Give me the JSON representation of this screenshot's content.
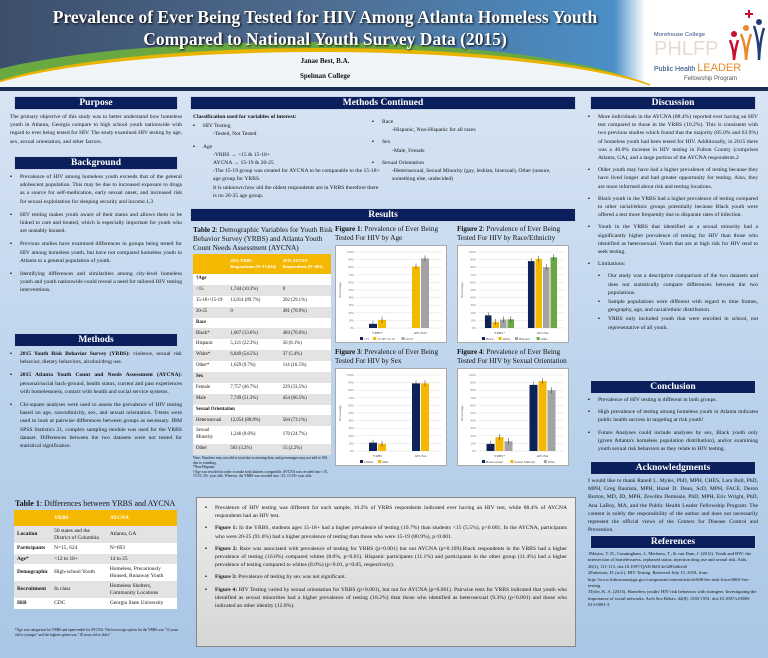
{
  "header": {
    "title_line1": "Prevalence of Ever Being Tested for HIV Among Atlanta Homeless Youth",
    "title_line2": "Compared to National Youth Survey Data (2015)",
    "author": "Janae Best, B.A.",
    "affiliation": "Spelman College",
    "logo": {
      "line1": "Morehouse College",
      "line2": "PHLFP",
      "line3a": "Public Health",
      "line3b": "LEADER",
      "line4": "Fellowship Program"
    }
  },
  "purpose": {
    "heading": "Purpose",
    "text": "The primary objective of this study was to better understand how homeless youth in Atlanta, Georgia compare to high school youth nationwide with regard to ever being tested for HIV. The study examined HIV testing by age, sex, sexual orientation, and other factors."
  },
  "background": {
    "heading": "Background",
    "items": [
      "Prevalence of HIV among homeless youth exceeds that of the general adolescent population. This may be due to increased exposure to drugs as a source for self-medication, early sexual onset, and increased risk for sexual exploitation for sleeping security and income.1,3",
      "HIV testing makes youth aware of their status and allows them to be linked to care and treated, which is especially important for youth who are unstably housed.",
      "Previous studies have examined differences in groups being tested for HIV among homeless youth, but have not compared homeless youth in Atlanta to a general population of youth.",
      "Identifying differences and similarities among city-level homeless youth and youth nationwide could reveal a need for tailored HIV testing interventions."
    ]
  },
  "methods": {
    "heading": "Methods",
    "items": [
      {
        "bold": "2015 Youth Risk Behavior Survey (YRBS):",
        "text": " violence, sexual risk behavior, dietary behaviors, alcohol/drug use."
      },
      {
        "bold": "2015 Atlanta Youth Count and Needs Assessment (AYCNA)",
        "text": ": personal/social back-ground, health status, current and past experiences with homelessness, contact with health and social service systems."
      },
      {
        "bold": "",
        "text": "Chi-square analyses were used to assess the prevalence of HIV testing based on age, race/ethnicity, sex, and sexual orientation. T-tests were used to look at pairwise differences between groups as necessary. IBM SPSS Statistics 21, complex sampling module was used for the YRBS dataset. Differences between the two datasets were not tested for statistical significance."
      }
    ]
  },
  "table1": {
    "caption_bold": "Table 1",
    "caption": ": Differences between YRBS and AYCNA",
    "headers": [
      "",
      "YRBS",
      "AYCNA"
    ],
    "rows": [
      [
        "Location",
        "50 states and the District of Columbia",
        "Atlanta, GA"
      ],
      [
        "Participants",
        "N=15, 624",
        "N=693"
      ],
      [
        "Age*",
        "<12 to 18+",
        "14 to 25"
      ],
      [
        "Demographic",
        "High-school Youth",
        "Homeless, Precariously Housed, Runaway Youth"
      ],
      [
        "Recruitment",
        "In class",
        "Homeless Shelters, Community Locations"
      ],
      [
        "IRB",
        "CDC",
        "Georgia State University"
      ]
    ],
    "note": "*Age was categorical for YRBS and open-ended for AYCNA. The lowest age option for the YRBS was \"12 years old or younger\" and the highest option was \"18 years old or older\""
  },
  "methods_continued": {
    "heading": "Methods Continued",
    "classification": "Classification used for variables of interest:",
    "left": [
      {
        "label": "HIV Testing",
        "lines": [
          "-Tested, Not Tested"
        ]
      },
      {
        "label": "Age",
        "lines": [
          "-YRBS → <15 & 15-18+",
          "AYCNA → 15-19 & 20-25",
          "-The 15-19 group was created for AYCNA to be comparable to the 15-18+ age group for YRBS.",
          "It is unknown how old the oldest respondents are in YRBS therefore there is no 20-25 age group."
        ]
      }
    ],
    "right": [
      {
        "label": "Race",
        "lines": [
          "-Hispanic, Non-Hispanic for all races"
        ]
      },
      {
        "label": "Sex",
        "lines": [
          "-Male, Female"
        ]
      },
      {
        "label": "Sexual Orientation",
        "lines": [
          "-Heterosexual, Sexual Minority (gay, lesbian, bisexual), Other (unsure, something else, undecided)"
        ]
      }
    ]
  },
  "results": {
    "heading": "Results",
    "items": [
      {
        "bold": "",
        "text": "Prevalence of HIV testing was different for each sample, 10.2% of YRBS respondents indicated ever having an HIV test, while 88.4% of AYCNA respondents had an HIV test."
      },
      {
        "bold": "Figure 1:",
        "text": " In the YRBS, students ages 15-18+ had a higher prevalence of testing (10.7%) than students <15 (5.5%), p<0.001. In the AYCNA, participants who were 20-25 (91.6%) had a higher prevalence of testing than those who were 15-19 (80.9%), p<0.001."
      },
      {
        "bold": "Figure 2:",
        "text": " Race was associated with prevalence of testing for YRBS (p<0.001) but not AYCNA (p=0.109).Black respondents in the YRBS had a higher prevalence of testing (16.6%) compared whites (8.0%, p<0.01). Hispanic participants (11.1%) and participants in the other group (11.4%) had a higher prevalence of testing compared to whites (8.0%) (p<0.01, p<0.05, respectively)."
      },
      {
        "bold": "Figure 3:",
        "text": " Prevalence of testing by sex was not significant."
      },
      {
        "bold": "Figure 4:",
        "text": " HIV Testing varied by sexual orientation for YRBS (p<0.001), but not for AYCNA (p=0.061). Pairwise tests for YRBS indicated that youth who identified as sexual minorities had a higher prevalence of testing (18.2%) than those who identified as heterosexual (9.3%) (p<0.001) and those who indicated an other identity (12.8%)."
      }
    ]
  },
  "table2": {
    "caption_bold": "Table 2",
    "caption": ": Demographic Variables for Youth Risk Behavior Survey (YRBS) and Atlanta Youth Count Needs Assessment (AYCNA)",
    "headers": [
      "",
      "2015 YRBS Respondents (N=15,624)",
      "2015 AYCNA Respondents (N=693)"
    ],
    "rows": [
      {
        "section": "†Age"
      },
      [
        "<15",
        "1,744 (10.3%)",
        "0"
      ],
      [
        "15-18+/15-19",
        "13,814 (89.7%)",
        "202 (29.1%)"
      ],
      [
        "20-25",
        "0",
        "491 (70.9%)"
      ],
      {
        "section": "Race"
      },
      [
        "Black*",
        "1,667 (13.6%)",
        "484 (70.0%)"
      ],
      [
        "Hispanic",
        "5,121 (22.3%)",
        "56 (8.1%)"
      ],
      [
        "White*",
        "6,849 (54.5%)",
        "37 (5.4%)"
      ],
      [
        "Other*",
        "1,629 (9.7%)",
        "114 (16.5%)"
      ],
      {
        "section": "Sex"
      },
      [
        "Female",
        "7,757 (46.7%)",
        "229 (33.5%)"
      ],
      [
        "Male",
        "7,749 (51.3%)",
        "454 (66.5%)"
      ],
      {
        "section": "Sexual Orientation"
      },
      [
        "Heterosexual",
        "12,054 (88.8%)",
        "504 (73.1%)"
      ],
      [
        "Sexual Minority",
        "1,246 (8.0%)",
        "170 (24.7%)"
      ],
      [
        "Other",
        "503 (3.2%)",
        "15 (2.2%)"
      ]
    ],
    "notes": [
      "Note: Numbers may not add to total due to missing data, and percentages may not add to 100, due to rounding.",
      "*Non-Hispanic",
      "†Age was recoded in order to make both datasets comparable. AYCNA was recoded into <15, 15-19, 20+ year olds. Whereas, the YRBS was recoded into <15, 15-18+ year olds."
    ]
  },
  "chart_data": [
    {
      "type": "bar",
      "title_bold": "Figure 1",
      "title": ": Prevalence of Ever Being Tested For HIV by Age",
      "categories": [
        "YRBS*",
        "AYCNA*"
      ],
      "ylabel": "Percentage",
      "ylim": [
        0,
        100
      ],
      "yticks": [
        "0%",
        "10%",
        "20%",
        "30%",
        "40%",
        "50%",
        "60%",
        "70%",
        "80%",
        "90%",
        "100%"
      ],
      "series": [
        {
          "name": "<15",
          "color": "#0c2259",
          "values": [
            5.5,
            null
          ]
        },
        {
          "name": "15-18+/15-19",
          "color": "#f5b800",
          "values": [
            10.7,
            80.9
          ]
        },
        {
          "name": "20-25",
          "color": "#a3a3a3",
          "values": [
            null,
            91.6
          ]
        }
      ]
    },
    {
      "type": "bar",
      "title_bold": "Figure 2",
      "title": ": Prevalence of Ever Being Tested For HIV by Race/Ethnicity",
      "categories": [
        "YRBS*",
        "AYCNA"
      ],
      "ylabel": "Percentage",
      "ylim": [
        0,
        100
      ],
      "yticks": [
        "0%",
        "10%",
        "20%",
        "30%",
        "40%",
        "50%",
        "60%",
        "70%",
        "80%",
        "90%",
        "100%"
      ],
      "series": [
        {
          "name": "Black",
          "color": "#0c2259",
          "values": [
            16.6,
            88
          ]
        },
        {
          "name": "White",
          "color": "#f5b800",
          "values": [
            8.0,
            91
          ]
        },
        {
          "name": "Hispanic",
          "color": "#a3a3a3",
          "values": [
            11.1,
            80
          ]
        },
        {
          "name": "Other",
          "color": "#6aa842",
          "values": [
            11.4,
            93
          ]
        }
      ]
    },
    {
      "type": "bar",
      "title_bold": "Figure 3",
      "title": ": Prevalence of Ever Being Tested For HIV by Sex",
      "categories": [
        "YRBS",
        "AYCNA"
      ],
      "ylabel": "Percentage",
      "ylim": [
        0,
        100
      ],
      "yticks": [
        "0%",
        "10%",
        "20%",
        "30%",
        "40%",
        "50%",
        "60%",
        "70%",
        "80%",
        "90%",
        "100%"
      ],
      "series": [
        {
          "name": "Female",
          "color": "#0c2259",
          "values": [
            11,
            89
          ]
        },
        {
          "name": "Male",
          "color": "#f5b800",
          "values": [
            9.5,
            89
          ]
        }
      ]
    },
    {
      "type": "bar",
      "title_bold": "Figure 4",
      "title": ": Prevalence of Ever Being Tested For HIV by Sexual Orientation",
      "categories": [
        "YRBS*",
        "AYCNA"
      ],
      "ylabel": "Percentage",
      "ylim": [
        0,
        100
      ],
      "yticks": [
        "0%",
        "10%",
        "20%",
        "30%",
        "40%",
        "50%",
        "60%",
        "70%",
        "80%",
        "90%",
        "100%"
      ],
      "series": [
        {
          "name": "Heterosexual",
          "color": "#0c2259",
          "values": [
            9.3,
            87
          ]
        },
        {
          "name": "Sexual Minority",
          "color": "#f5b800",
          "values": [
            18.2,
            92
          ]
        },
        {
          "name": "Other",
          "color": "#a3a3a3",
          "values": [
            12.8,
            80
          ]
        }
      ]
    }
  ],
  "discussion": {
    "heading": "Discussion",
    "items": [
      "More individuals in the AYCNA (88.4%) reported ever having an HIV test compared to those in the YRBS (10.2%). This is consistent with two previous studies which found that the majority (85.0% and 63.9%) of homeless youth had been tested for HIV. Additionally, in 2015 there was a 40.0% increase in HIV testing in Fulton County (comprises Atlanta, GA), and a large portion of the AYCNA respondents.2",
      "Older youth may have had a higher prevalence of testing because they have lived longer and had greater opportunity for testing. Also, they are more informed about risk and testing locations.",
      "Black youth in the YRBS had a higher prevalence of testing compared to other racial/ethnic groups potentially because Black youth were offered a test more frequently due to disparate rates of infection.",
      "Youth in the YRBS that identified as a sexual minority had a significantly higher prevalence of testing for HIV than those who identified as heterosexual. Youth that are at high risk for HIV tend to seek testing.",
      "Limitations:"
    ],
    "limitations": [
      "Our study was a descriptive comparison of the two datasets and does not statistically compare differences between the two populations.",
      "Sample populations were different with regard to time frames, geography, age, and racial/ethnic distribution.",
      "YRBS only included youth that were enrolled in school, not representative of all youth."
    ]
  },
  "conclusion": {
    "heading": "Conclusion",
    "items": [
      "Prevalence of HIV testing is different in both groups.",
      "High prevalence of testing among homeless youth in Atlanta indicates public health success in targeting at risk youth!",
      "Future Analyses could include analyses by sex, Black youth only (given Atlanta's homeless population distribution), and/or examining youth sexual risk behaviors as they relate to HIV testing."
    ]
  },
  "acknowledgments": {
    "heading": "Acknowledgments",
    "text": "I would like to thank Ranell L. Myles, PhD, MPH, CHES, Lara Bull, PhD, MPH, Greg Bautista, MPH, Hazel D. Dean, ScD, MPH, FACE, Deron Burton, MD, JD, MPH, Zewditu Demissie, PhD, MPH, Eric Wright, PhD, Ana LaBoy, MA, and the Public Health Leader Fellowship Program. The content is solely the responsibility of the author and does not necessarily represent the official views of the Centers for Disease Control and Prevention."
  },
  "references": {
    "heading": "References",
    "items": [
      "1Mastro, T. D., Cunningham, J., Medrano, T., & van Dam, J. (2012). Youth and HIV: the intersection of homelessness, orphaned status, injection drug use and sexual risk. Aids, 26(1), 111-113. doi:10.1097/QAD.0b013e32834dcfa0",
      "2Patterson, D. (n.d.). HIV Testing. Retrieved July 15, 2018, from http://www.fultoncountyga.gov/component/content/article/606-hiv-task-force/6061-hiv-testing",
      "3Tyler, K. A. (2013). Homeless youths' HIV risk behaviors with strangers: Investigating the importance of social networks. Arch Sex Behav, 42(8), 1583-1591. doi:10.1007/s10508-013-0091-3"
    ]
  }
}
